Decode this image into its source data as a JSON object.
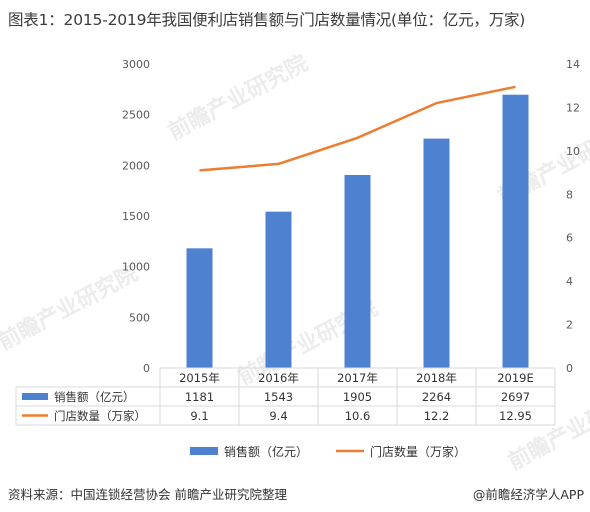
{
  "title": "图表1：2015-2019年我国便利店销售额与门店数量情况(单位：亿元，万家)",
  "source": "资料来源：中国连锁经营协会 前瞻产业研究院整理",
  "brand": "@前瞻经济学人APP",
  "watermark": "前瞻产业研究院",
  "colors": {
    "bar": "#4F81D1",
    "line": "#ED7D31",
    "grid": "#d9d9d9",
    "axis_text": "#595959"
  },
  "chart_data": {
    "type": "bar+line",
    "categories": [
      "2015年",
      "2016年",
      "2017年",
      "2018年",
      "2019E"
    ],
    "series": [
      {
        "name": "销售额（亿元）",
        "type": "bar",
        "axis": "left",
        "values": [
          1181,
          1543,
          1905,
          2264,
          2697
        ],
        "labels": [
          "1181",
          "1543",
          "1905",
          "2264",
          "2697"
        ]
      },
      {
        "name": "门店数量（万家）",
        "type": "line",
        "axis": "right",
        "values": [
          9.1,
          9.4,
          10.6,
          12.2,
          12.95
        ],
        "labels": [
          "9.1",
          "9.4",
          "10.6",
          "12.2",
          "12.95"
        ]
      }
    ],
    "left_axis": {
      "ylim": [
        0,
        3000
      ],
      "ticks": [
        0,
        500,
        1000,
        1500,
        2000,
        2500,
        3000
      ]
    },
    "right_axis": {
      "ylim": [
        0,
        14
      ],
      "ticks": [
        0,
        2,
        4,
        6,
        8,
        10,
        12,
        14
      ]
    },
    "grid": true,
    "legend": "bottom",
    "data_table": true
  }
}
